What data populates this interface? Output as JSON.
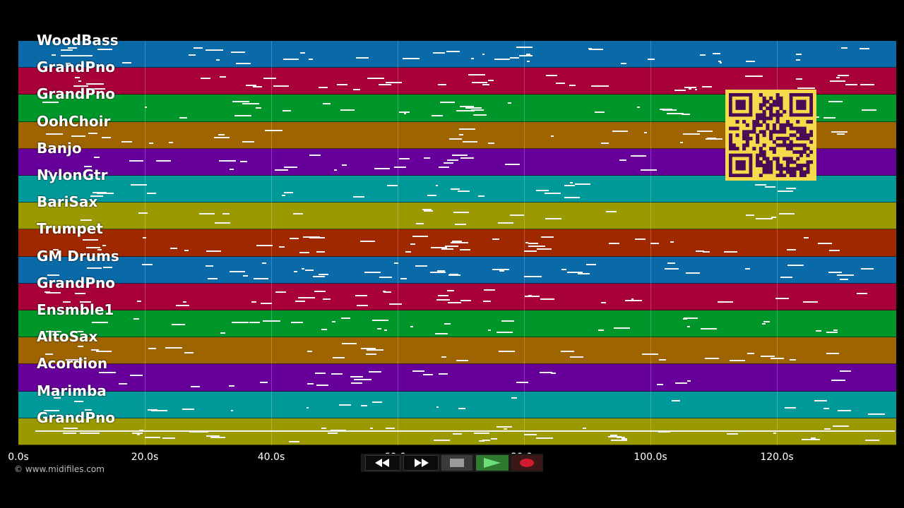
{
  "tracks": [
    {
      "label": "WoodBass",
      "color": "#0a6aa8"
    },
    {
      "label": "GrandPno",
      "color": "#a8003a"
    },
    {
      "label": "GrandPno",
      "color": "#00972a"
    },
    {
      "label": "OohChoir",
      "color": "#9e6400"
    },
    {
      "label": "Banjo",
      "color": "#67009a"
    },
    {
      "label": "NylonGtr",
      "color": "#00999a"
    },
    {
      "label": "BariSax",
      "color": "#9a9a00"
    },
    {
      "label": "Trumpet",
      "color": "#a02800"
    },
    {
      "label": "GM Drums",
      "color": "#0a6aa8"
    },
    {
      "label": "GrandPno",
      "color": "#a8003a"
    },
    {
      "label": "Ensmble1",
      "color": "#00972a"
    },
    {
      "label": "AltoSax",
      "color": "#9e6400"
    },
    {
      "label": "Acordion",
      "color": "#67009a"
    },
    {
      "label": "Marimba",
      "color": "#00999a"
    },
    {
      "label": "GrandPno",
      "color": "#9a9a00"
    }
  ],
  "timeline": {
    "ticks": [
      "0.0s",
      "20.0s",
      "40.0s",
      "60.0s",
      "80.0s",
      "100.0s",
      "120.0s"
    ]
  },
  "credit": "© www.midifiles.com",
  "transport": {
    "buttons": [
      {
        "name": "rewind",
        "icon": "rewind-icon"
      },
      {
        "name": "fast-forward",
        "icon": "fast-forward-icon"
      },
      {
        "name": "stop",
        "icon": "stop-icon"
      },
      {
        "name": "play",
        "icon": "play-icon",
        "active": true
      },
      {
        "name": "record",
        "icon": "record-icon"
      }
    ]
  },
  "colors": {
    "qr_background": "#f7d94c",
    "qr_modules": "#4a0a55",
    "play_green": "#2e9e3a",
    "record_red": "#d01c2c"
  }
}
